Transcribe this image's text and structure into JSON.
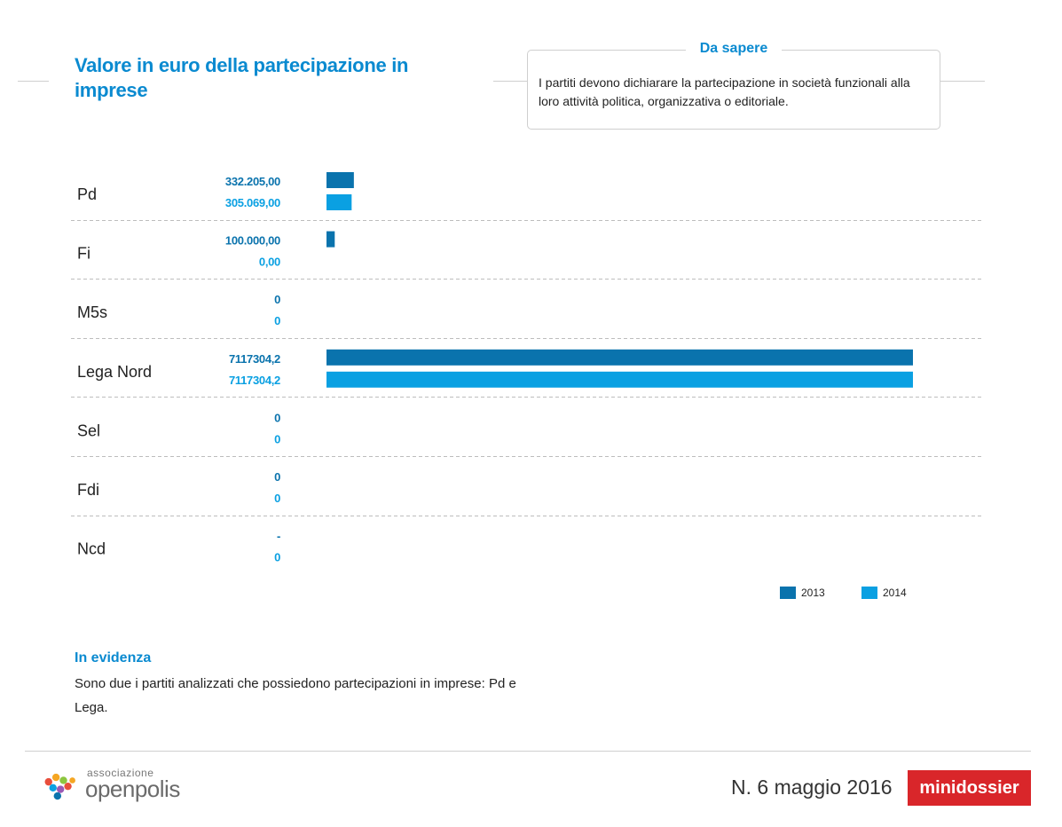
{
  "title": "Valore in euro della partecipazione in imprese",
  "info": {
    "heading": "Da sapere",
    "text": "I partiti devono dichiarare la partecipazione in società funzionali alla loro attività politica, organizzativa o editoriale."
  },
  "colors": {
    "accent": "#0a8ad0",
    "s2013": "#0a73ad",
    "s2014": "#0aa0e2",
    "badge": "#d9262a"
  },
  "chart_data": {
    "type": "bar",
    "orientation": "horizontal",
    "title": "Valore in euro della partecipazione in imprese",
    "categories": [
      "Pd",
      "Fi",
      "M5s",
      "Lega Nord",
      "Sel",
      "Fdi",
      "Ncd"
    ],
    "series": [
      {
        "name": "2013",
        "color": "#0a73ad",
        "values": [
          332205,
          100000,
          0,
          7117304.2,
          0,
          0,
          null
        ],
        "labels": [
          "332.205,00",
          "100.000,00",
          "0",
          "7117304,2",
          "0",
          "0",
          "-"
        ]
      },
      {
        "name": "2014",
        "color": "#0aa0e2",
        "values": [
          305069,
          0,
          0,
          7117304.2,
          0,
          0,
          0
        ],
        "labels": [
          "305.069,00",
          "0,00",
          "0",
          "7117304,2",
          "0",
          "0",
          "0"
        ]
      }
    ],
    "xlim": [
      0,
      7117304.2
    ],
    "grid": false,
    "legend": "bottom-right"
  },
  "legend": {
    "l2013": "2013",
    "l2014": "2014"
  },
  "evidenza": {
    "title": "In evidenza",
    "text": "Sono due i partiti analizzati che possiedono partecipazioni in imprese: Pd e Lega."
  },
  "footer": {
    "logo_small": "associazione",
    "logo_name": "openpolis",
    "issue": "N. 6 maggio 2016",
    "badge": "minidossier"
  }
}
